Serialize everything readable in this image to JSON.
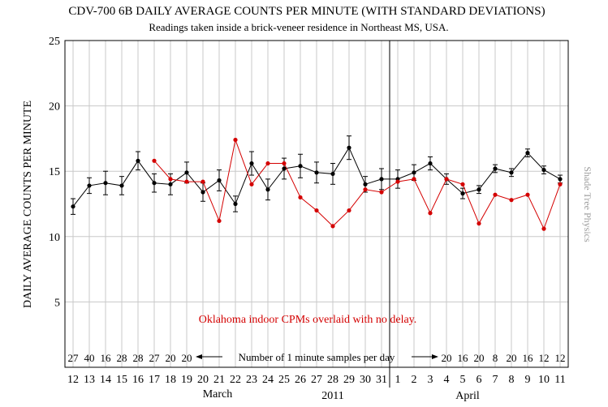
{
  "title": "CDV-700 6B DAILY AVERAGE COUNTS PER MINUTE (WITH STANDARD DEVIATIONS)",
  "subtitle": "Readings taken inside a brick-veneer residence in Northeast MS, USA.",
  "ylabel": "DAILY AVERAGE COUNTS PER MINUTE",
  "side_label": "Shade Tree Physics",
  "annotation": "Oklahoma indoor CPMs overlaid with no delay.",
  "samples_label": "Number of 1 minute samples per day",
  "month_march": "March",
  "month_april": "April",
  "year": "2011",
  "colors": {
    "black_series": "#000000",
    "red_series": "#d40000",
    "grid": "#c8c8c8"
  },
  "chart_data": {
    "type": "line",
    "ylim": [
      0,
      25
    ],
    "y_ticks": [
      "5",
      "10",
      "15",
      "20",
      "25"
    ],
    "x_tick_labels": [
      "12",
      "13",
      "14",
      "15",
      "16",
      "17",
      "18",
      "19",
      "20",
      "21",
      "22",
      "23",
      "24",
      "25",
      "26",
      "27",
      "28",
      "29",
      "30",
      "31",
      "1",
      "2",
      "3",
      "4",
      "5",
      "6",
      "7",
      "8",
      "9",
      "10",
      "11"
    ],
    "grid": true,
    "divider_after_index": 19,
    "series": [
      {
        "values": [
          12.3,
          13.9,
          14.1,
          13.9,
          15.8,
          14.1,
          14.0,
          14.9,
          13.4,
          14.3,
          12.5,
          15.6,
          13.6,
          15.2,
          15.4,
          14.9,
          14.8,
          16.8,
          14.0,
          14.4,
          14.4,
          14.9,
          15.6,
          14.4,
          13.3,
          13.6,
          15.2,
          14.9,
          16.4,
          15.1,
          14.4
        ],
        "errors": [
          0.6,
          0.6,
          0.9,
          0.7,
          0.7,
          0.7,
          0.8,
          0.8,
          0.7,
          0.8,
          0.6,
          0.9,
          0.8,
          0.8,
          0.9,
          0.8,
          0.8,
          0.9,
          0.6,
          0.8,
          0.7,
          0.6,
          0.5,
          0.4,
          0.4,
          0.3,
          0.3,
          0.3,
          0.3,
          0.3,
          0.3
        ]
      },
      {
        "values": [
          null,
          null,
          null,
          null,
          null,
          15.8,
          14.4,
          14.2,
          14.2,
          11.2,
          17.4,
          14.0,
          15.6,
          15.6,
          13.0,
          12.0,
          10.8,
          12.0,
          13.6,
          13.4,
          14.2,
          14.4,
          11.8,
          14.4,
          14.0,
          11.0,
          13.2,
          12.8,
          13.2,
          10.6,
          14.0
        ]
      }
    ],
    "sample_counts_left": [
      "27",
      "40",
      "16",
      "28",
      "28",
      "27",
      "20",
      "20"
    ],
    "sample_counts_right": [
      "20",
      "16",
      "20",
      "8",
      "20",
      "16",
      "12",
      "12"
    ]
  }
}
